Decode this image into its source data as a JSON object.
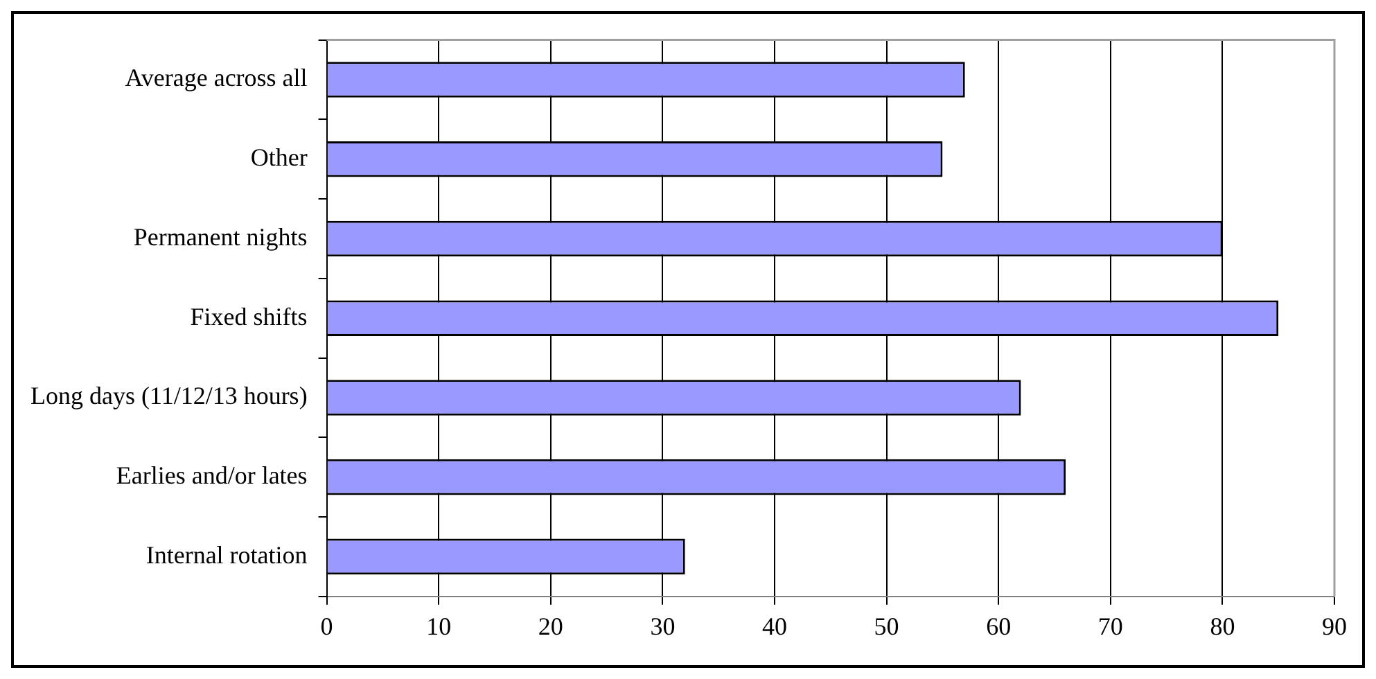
{
  "chart_data": {
    "type": "bar",
    "orientation": "horizontal",
    "categories": [
      "Average across all",
      "Other",
      "Permanent nights",
      "Fixed shifts",
      "Long days (11/12/13 hours)",
      "Earlies and/or lates",
      "Internal rotation"
    ],
    "values": [
      57,
      55,
      80,
      85,
      62,
      66,
      32
    ],
    "color": "#9999ff",
    "xlim": [
      0,
      90
    ],
    "xticks": [
      0,
      10,
      20,
      30,
      40,
      50,
      60,
      70,
      80,
      90
    ],
    "grid": "x",
    "legend": false
  }
}
